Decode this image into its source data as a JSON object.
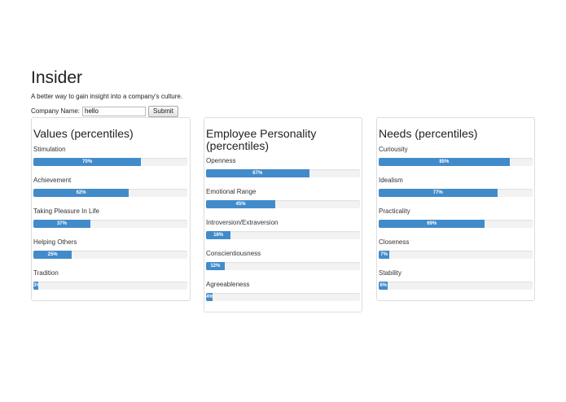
{
  "app": {
    "title": "Insider",
    "tagline": "A better way to gain insight into a company's culture."
  },
  "search": {
    "label": "Company Name:",
    "value": "hello",
    "submit_label": "Submit"
  },
  "colors": {
    "bar_fill": "#428bca",
    "bar_track": "#f2f2f2"
  },
  "panels": [
    {
      "title": "Values (percentiles)",
      "traits": [
        {
          "label": "Stimulation",
          "value": 70,
          "text": "70%"
        },
        {
          "label": "Achievement",
          "value": 62,
          "text": "62%"
        },
        {
          "label": "Taking Pleasure In Life",
          "value": 37,
          "text": "37%"
        },
        {
          "label": "Helping Others",
          "value": 25,
          "text": "25%"
        },
        {
          "label": "Tradition",
          "value": 3,
          "text": "3%"
        }
      ]
    },
    {
      "title": "Employee Personality (percentiles)",
      "traits": [
        {
          "label": "Openness",
          "value": 67,
          "text": "67%"
        },
        {
          "label": "Emotional Range",
          "value": 45,
          "text": "45%"
        },
        {
          "label": "Introversion/Extraversion",
          "value": 16,
          "text": "16%"
        },
        {
          "label": "Conscientiousness",
          "value": 12,
          "text": "12%"
        },
        {
          "label": "Agreeableness",
          "value": 4,
          "text": "4%"
        }
      ]
    },
    {
      "title": "Needs (percentiles)",
      "traits": [
        {
          "label": "Curiousity",
          "value": 85,
          "text": "85%"
        },
        {
          "label": "Idealism",
          "value": 77,
          "text": "77%"
        },
        {
          "label": "Practicality",
          "value": 69,
          "text": "69%"
        },
        {
          "label": "Closeness",
          "value": 7,
          "text": "7%"
        },
        {
          "label": "Stability",
          "value": 6,
          "text": "6%"
        }
      ]
    }
  ]
}
